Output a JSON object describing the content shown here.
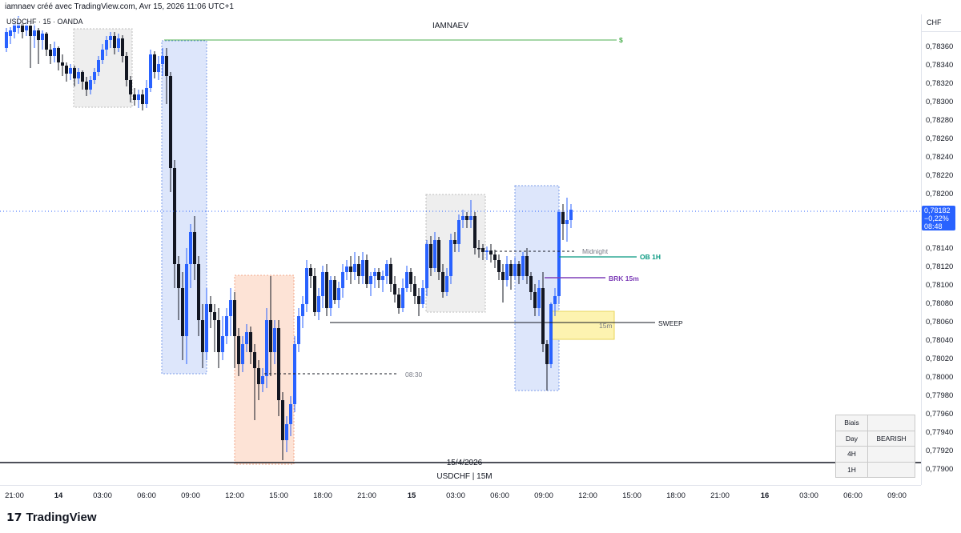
{
  "header": {
    "created_line": "iamnaev créé avec TradingView.com, Avr 15, 2026 11:06 UTC+1",
    "symbol_line": "USDCHF · 15 · OANDA",
    "watermark_title": "IAMNAEV"
  },
  "footer": {
    "date_label": "15/4/2026",
    "symbol_label": "USDCHF | 15M",
    "logo_text": "TradingView"
  },
  "price_axis": {
    "currency": "CHF",
    "ticks": [
      "0,78360",
      "0,78340",
      "0,78320",
      "0,78300",
      "0,78280",
      "0,78260",
      "0,78240",
      "0,78220",
      "0,78200",
      "0,78140",
      "0,78120",
      "0,78100",
      "0,78080",
      "0,78060",
      "0,78040",
      "0,78020",
      "0,78000",
      "0,77980",
      "0,77960",
      "0,77940",
      "0,77920",
      "0,77900"
    ],
    "current_price": "0,78182",
    "current_change": "−0,22%",
    "current_countdown": "08:48",
    "current_color": "#2962ff"
  },
  "time_axis": {
    "ticks": [
      {
        "label": "21:00",
        "bold": false
      },
      {
        "label": "14",
        "bold": true
      },
      {
        "label": "03:00",
        "bold": false
      },
      {
        "label": "06:00",
        "bold": false
      },
      {
        "label": "09:00",
        "bold": false
      },
      {
        "label": "12:00",
        "bold": false
      },
      {
        "label": "15:00",
        "bold": false
      },
      {
        "label": "18:00",
        "bold": false
      },
      {
        "label": "21:00",
        "bold": false
      },
      {
        "label": "15",
        "bold": true
      },
      {
        "label": "03:00",
        "bold": false
      },
      {
        "label": "06:00",
        "bold": false
      },
      {
        "label": "09:00",
        "bold": false
      },
      {
        "label": "12:00",
        "bold": false
      },
      {
        "label": "15:00",
        "bold": false
      },
      {
        "label": "18:00",
        "bold": false
      },
      {
        "label": "21:00",
        "bold": false
      },
      {
        "label": "16",
        "bold": true
      },
      {
        "label": "03:00",
        "bold": false
      },
      {
        "label": "06:00",
        "bold": false
      },
      {
        "label": "09:00",
        "bold": false
      }
    ]
  },
  "annotations": {
    "dollar": "$",
    "midnight": "Midnight",
    "ob": "OB 1H",
    "brk": "BRK 15m",
    "sweep": "SWEEP",
    "fifteen": "15m",
    "time_0830": "08:30"
  },
  "colors": {
    "bull": "#2962ff",
    "bear": "#131722",
    "ob": "#089981",
    "brk": "#7e3fb8",
    "dollar": "#4caf50"
  },
  "biais_table": {
    "header": "Biais",
    "rows": [
      {
        "label": "Day",
        "value": "BEARISH"
      },
      {
        "label": "4H",
        "value": ""
      },
      {
        "label": "1H",
        "value": ""
      }
    ]
  }
}
